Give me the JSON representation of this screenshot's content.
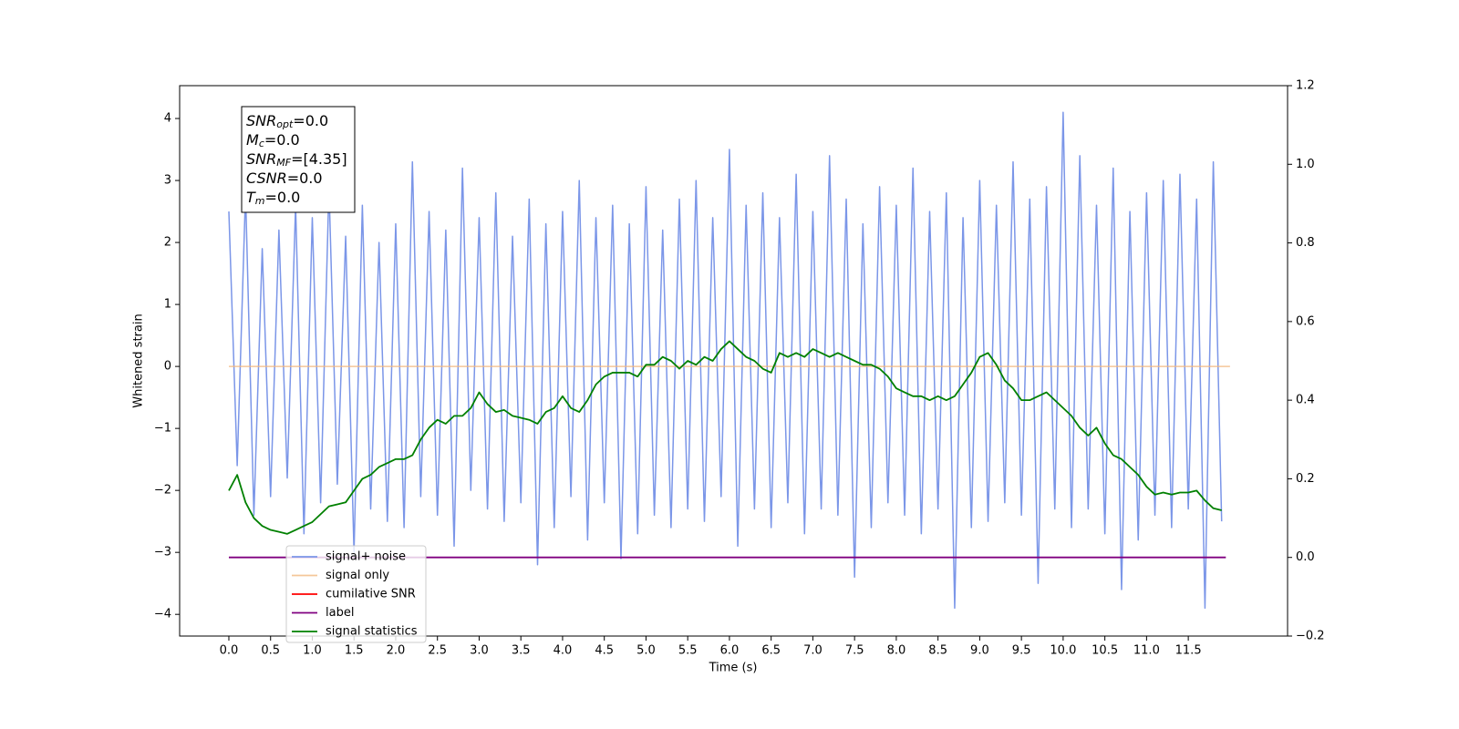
{
  "chart_data": {
    "type": "line",
    "xlabel": "Time (s)",
    "ylabel": "Whitened strain",
    "xlim": [
      -0.59,
      12.69
    ],
    "ylim": [
      -4.35,
      4.53
    ],
    "y2lim": [
      -0.2,
      1.2
    ],
    "xticks": [
      {
        "value": 0,
        "label": "0.0"
      },
      0.5,
      {
        "value": 1,
        "label": "1.0"
      },
      1.5,
      {
        "value": 2,
        "label": "2.0"
      },
      2.5,
      {
        "value": 3,
        "label": "3.0"
      },
      3.5,
      {
        "value": 4,
        "label": "4.0"
      },
      4.5,
      {
        "value": 5,
        "label": "5.0"
      },
      5.5,
      {
        "value": 6,
        "label": "6.0"
      },
      6.5,
      {
        "value": 7,
        "label": "7.0"
      },
      7.5,
      {
        "value": 8,
        "label": "8.0"
      },
      8.5,
      {
        "value": 9,
        "label": "9.0"
      },
      9.5,
      {
        "value": 10,
        "label": "10.0"
      },
      10.5,
      {
        "value": 11,
        "label": "11.0"
      },
      11.5
    ],
    "yticks": [
      {
        "value": -4,
        "label": "−4"
      },
      {
        "value": -3,
        "label": "−3"
      },
      {
        "value": -2,
        "label": "−2"
      },
      {
        "value": -1,
        "label": "−1"
      },
      0,
      1,
      2,
      3,
      4
    ],
    "y2ticks": [
      {
        "value": -0.2,
        "label": "−0.2"
      },
      {
        "value": 0,
        "label": "0.0"
      },
      0.2,
      0.4,
      0.6,
      0.8,
      {
        "value": 1,
        "label": "1.0"
      },
      1.2
    ],
    "legend": "lower left",
    "annotation": [
      {
        "base": "SNR",
        "sub": "opt",
        "text": "=0.0"
      },
      {
        "base": "M",
        "sub": "c",
        "text": "=0.0"
      },
      {
        "base": "SNR",
        "sub": "MF",
        "text": "=[4.35]"
      },
      {
        "base": "CSNR",
        "text": "=0.0"
      },
      {
        "base": "T",
        "sub": "m",
        "text": "=0.0"
      }
    ],
    "x": [
      0,
      0.1,
      0.2,
      0.3,
      0.4,
      0.5,
      0.6,
      0.7,
      0.8,
      0.9,
      1,
      1.1,
      1.2,
      1.3,
      1.4,
      1.5,
      1.6,
      1.7,
      1.8,
      1.9,
      2,
      2.1,
      2.2,
      2.3,
      2.4,
      2.5,
      2.6,
      2.7,
      2.8,
      2.9,
      3,
      3.1,
      3.2,
      3.3,
      3.4,
      3.5,
      3.6,
      3.7,
      3.8,
      3.9,
      4,
      4.1,
      4.2,
      4.3,
      4.4,
      4.5,
      4.6,
      4.7,
      4.8,
      4.9,
      5,
      5.1,
      5.2,
      5.3,
      5.4,
      5.5,
      5.6,
      5.7,
      5.8,
      5.9,
      6,
      6.1,
      6.2,
      6.3,
      6.4,
      6.5,
      6.6,
      6.7,
      6.8,
      6.9,
      7,
      7.1,
      7.2,
      7.3,
      7.4,
      7.5,
      7.6,
      7.7,
      7.8,
      7.9,
      8,
      8.1,
      8.2,
      8.3,
      8.4,
      8.5,
      8.6,
      8.7,
      8.8,
      8.9,
      9,
      9.1,
      9.2,
      9.3,
      9.4,
      9.5,
      9.6,
      9.7,
      9.8,
      9.9,
      10,
      10.1,
      10.2,
      10.3,
      10.4,
      10.5,
      10.6,
      10.7,
      10.8,
      10.9,
      11,
      11.1,
      11.2,
      11.3,
      11.4,
      11.5,
      11.6,
      11.7,
      11.8,
      11.9
    ],
    "series": [
      {
        "name": "signal+ noise",
        "color": "#7b96e8",
        "axis": "y",
        "values": [
          2.5,
          -1.6,
          2.8,
          -2.4,
          1.9,
          -2.1,
          2.2,
          -1.8,
          2.6,
          -2.7,
          2.4,
          -2.2,
          2.9,
          -1.9,
          2.1,
          -3.0,
          2.6,
          -2.3,
          2.0,
          -2.5,
          2.3,
          -2.6,
          3.3,
          -2.1,
          2.5,
          -2.4,
          2.2,
          -2.9,
          3.2,
          -2.0,
          2.4,
          -2.3,
          2.8,
          -2.5,
          2.1,
          -2.2,
          2.7,
          -3.2,
          2.3,
          -2.6,
          2.5,
          -2.1,
          3.0,
          -2.8,
          2.4,
          -2.2,
          2.6,
          -3.1,
          2.3,
          -2.7,
          2.9,
          -2.4,
          2.2,
          -2.6,
          2.7,
          -2.3,
          3.0,
          -2.5,
          2.4,
          -2.1,
          3.5,
          -2.9,
          2.6,
          -2.3,
          2.8,
          -2.6,
          2.4,
          -2.2,
          3.1,
          -2.7,
          2.5,
          -2.3,
          3.4,
          -2.4,
          2.7,
          -3.4,
          2.3,
          -2.6,
          2.9,
          -2.2,
          2.6,
          -2.4,
          3.2,
          -2.7,
          2.5,
          -2.3,
          2.8,
          -3.9,
          2.4,
          -2.6,
          3.0,
          -2.5,
          2.6,
          -2.2,
          3.3,
          -2.4,
          2.7,
          -3.5,
          2.9,
          -2.3,
          4.1,
          -2.6,
          3.4,
          -2.3,
          2.6,
          -2.7,
          3.2,
          -3.6,
          2.5,
          -2.8,
          2.8,
          -2.4,
          3.0,
          -2.6,
          3.1,
          -2.3,
          2.7,
          -3.9,
          3.3,
          -2.5
        ]
      },
      {
        "name": "signal only",
        "color": "#f2b880",
        "axis": "y",
        "x": [
          0,
          12
        ],
        "values": [
          0,
          0
        ]
      },
      {
        "name": "cumilative SNR",
        "color": "#ff0000",
        "axis": "y"
      },
      {
        "name": "label",
        "color": "#800080",
        "axis": "y2",
        "x": [
          0,
          11.95
        ],
        "values": [
          0,
          0
        ]
      },
      {
        "name": "signal statistics",
        "color": "#008000",
        "axis": "y2",
        "values": [
          0.17,
          0.21,
          0.14,
          0.1,
          0.08,
          0.07,
          0.065,
          0.06,
          0.07,
          0.08,
          0.09,
          0.11,
          0.13,
          0.135,
          0.14,
          0.17,
          0.2,
          0.21,
          0.23,
          0.24,
          0.25,
          0.25,
          0.26,
          0.3,
          0.33,
          0.35,
          0.34,
          0.36,
          0.36,
          0.38,
          0.42,
          0.39,
          0.37,
          0.375,
          0.36,
          0.355,
          0.35,
          0.34,
          0.37,
          0.38,
          0.41,
          0.38,
          0.37,
          0.4,
          0.44,
          0.46,
          0.47,
          0.47,
          0.47,
          0.46,
          0.49,
          0.49,
          0.51,
          0.5,
          0.48,
          0.5,
          0.49,
          0.51,
          0.5,
          0.53,
          0.55,
          0.53,
          0.51,
          0.5,
          0.48,
          0.47,
          0.52,
          0.51,
          0.52,
          0.51,
          0.53,
          0.52,
          0.51,
          0.52,
          0.51,
          0.5,
          0.49,
          0.49,
          0.48,
          0.46,
          0.43,
          0.42,
          0.41,
          0.41,
          0.4,
          0.41,
          0.4,
          0.41,
          0.44,
          0.47,
          0.51,
          0.52,
          0.49,
          0.45,
          0.43,
          0.4,
          0.4,
          0.41,
          0.42,
          0.4,
          0.38,
          0.36,
          0.33,
          0.31,
          0.33,
          0.29,
          0.26,
          0.25,
          0.23,
          0.21,
          0.18,
          0.16,
          0.165,
          0.16,
          0.165,
          0.165,
          0.17,
          0.145,
          0.125,
          0.12
        ]
      }
    ]
  }
}
